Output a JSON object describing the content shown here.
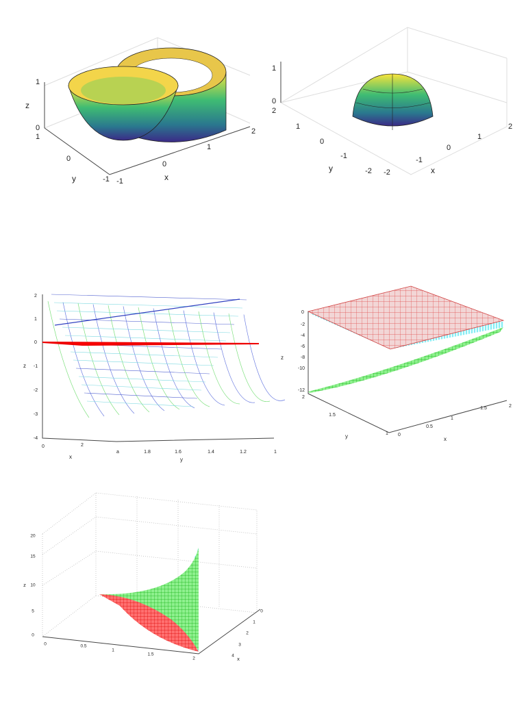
{
  "figures": [
    {
      "axes": {
        "z": {
          "label": "z",
          "ticks": [
            "1",
            "0"
          ]
        },
        "y": {
          "label": "y",
          "ticks": [
            "1",
            "0",
            "-1"
          ]
        },
        "x": {
          "label": "x",
          "ticks": [
            "-1",
            "0",
            "1",
            "2"
          ]
        }
      }
    },
    {
      "axes": {
        "z": {
          "ticks": [
            "1",
            "0"
          ]
        },
        "y": {
          "label": "y",
          "ticks": [
            "2",
            "1",
            "0",
            "-1",
            "-2"
          ]
        },
        "x": {
          "label": "x",
          "ticks": [
            "-2",
            "-1",
            "0",
            "1",
            "2"
          ]
        }
      }
    },
    {
      "axes": {
        "z": {
          "label": "z",
          "ticks": [
            "2",
            "1",
            "0",
            "-1",
            "-2",
            "-3",
            "-4"
          ]
        },
        "x": {
          "label": "x",
          "ticks": [
            "0",
            "2"
          ]
        },
        "y": {
          "label": "y",
          "ticks": [
            "a",
            "1.8",
            "1.6",
            "1.4",
            "1.2",
            "1"
          ]
        }
      }
    },
    {
      "axes": {
        "z": {
          "label": "z",
          "ticks": [
            "0",
            "-2",
            "-4",
            "-6",
            "-8",
            "-10",
            "-12"
          ]
        },
        "y": {
          "label": "y",
          "ticks": [
            "2",
            "1.5",
            "1"
          ]
        },
        "x": {
          "label": "x",
          "ticks": [
            "0",
            "0.5",
            "1",
            "1.5",
            "2"
          ]
        }
      }
    },
    {
      "axes": {
        "z": {
          "label": "z",
          "ticks": [
            "20",
            "15",
            "10",
            "5",
            "0"
          ]
        },
        "y": {
          "ticks": [
            "0",
            "0.5",
            "1",
            "1.5",
            "2"
          ]
        },
        "x": {
          "label": "x",
          "ticks": [
            "0",
            "1",
            "2",
            "3",
            "4"
          ]
        }
      }
    }
  ]
}
